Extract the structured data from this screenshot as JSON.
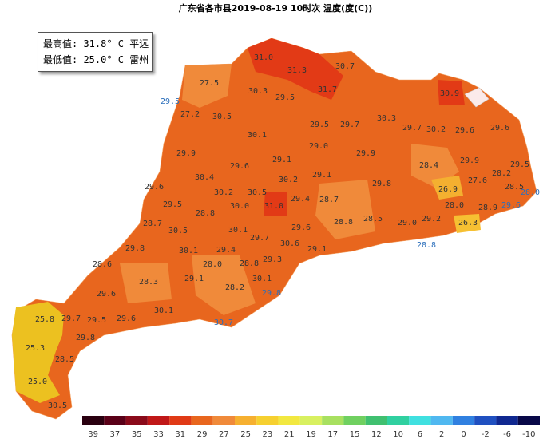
{
  "header": {
    "title": "广东省各市县2019-08-19 10时次 温度(度(C))"
  },
  "info": {
    "max": "最高值: 31.8° C 平远",
    "min": "最低值: 25.0° C 雷州"
  },
  "labels": [
    {
      "text": "31.0",
      "color": "#333"
    },
    {
      "text": "31.3",
      "color": "#333"
    },
    {
      "text": "30.7",
      "color": "#333"
    },
    {
      "text": "27.5",
      "color": "#333"
    },
    {
      "text": "29.5",
      "color": "#2a6ebb"
    },
    {
      "text": "30.3",
      "color": "#333"
    },
    {
      "text": "29.5",
      "color": "#333"
    },
    {
      "text": "31.7",
      "color": "#333"
    },
    {
      "text": "30.9",
      "color": "#333"
    },
    {
      "text": "27.2",
      "color": "#333"
    },
    {
      "text": "30.5",
      "color": "#333"
    },
    {
      "text": "30.3",
      "color": "#333"
    },
    {
      "text": "29.5",
      "color": "#333"
    },
    {
      "text": "29.7",
      "color": "#333"
    },
    {
      "text": "29.7",
      "color": "#333"
    },
    {
      "text": "30.2",
      "color": "#333"
    },
    {
      "text": "29.6",
      "color": "#333"
    },
    {
      "text": "29.6",
      "color": "#333"
    },
    {
      "text": "30.1",
      "color": "#333"
    },
    {
      "text": "29.0",
      "color": "#333"
    },
    {
      "text": "29.9",
      "color": "#333"
    },
    {
      "text": "29.1",
      "color": "#333"
    },
    {
      "text": "29.6",
      "color": "#333"
    },
    {
      "text": "29.9",
      "color": "#333"
    },
    {
      "text": "29.9",
      "color": "#333"
    },
    {
      "text": "28.4",
      "color": "#333"
    },
    {
      "text": "29.5",
      "color": "#333"
    },
    {
      "text": "28.2",
      "color": "#333"
    },
    {
      "text": "30.4",
      "color": "#333"
    },
    {
      "text": "30.2",
      "color": "#333"
    },
    {
      "text": "29.1",
      "color": "#333"
    },
    {
      "text": "29.8",
      "color": "#333"
    },
    {
      "text": "27.6",
      "color": "#333"
    },
    {
      "text": "26.9",
      "color": "#333"
    },
    {
      "text": "29.6",
      "color": "#333"
    },
    {
      "text": "28.5",
      "color": "#333"
    },
    {
      "text": "28.0",
      "color": "#2a6ebb"
    },
    {
      "text": "30.2",
      "color": "#333"
    },
    {
      "text": "30.5",
      "color": "#333"
    },
    {
      "text": "29.4",
      "color": "#333"
    },
    {
      "text": "28.7",
      "color": "#333"
    },
    {
      "text": "28.0",
      "color": "#333"
    },
    {
      "text": "28.9",
      "color": "#333"
    },
    {
      "text": "29.6",
      "color": "#2a6ebb"
    },
    {
      "text": "29.5",
      "color": "#333"
    },
    {
      "text": "30.0",
      "color": "#333"
    },
    {
      "text": "31.0",
      "color": "#333"
    },
    {
      "text": "28.8",
      "color": "#333"
    },
    {
      "text": "28.5",
      "color": "#333"
    },
    {
      "text": "29.0",
      "color": "#333"
    },
    {
      "text": "29.2",
      "color": "#333"
    },
    {
      "text": "26.3",
      "color": "#333"
    },
    {
      "text": "28.7",
      "color": "#333"
    },
    {
      "text": "28.8",
      "color": "#333"
    },
    {
      "text": "30.5",
      "color": "#333"
    },
    {
      "text": "30.1",
      "color": "#333"
    },
    {
      "text": "29.7",
      "color": "#333"
    },
    {
      "text": "29.6",
      "color": "#333"
    },
    {
      "text": "28.8",
      "color": "#2a6ebb"
    },
    {
      "text": "30.6",
      "color": "#333"
    },
    {
      "text": "29.1",
      "color": "#333"
    },
    {
      "text": "29.8",
      "color": "#333"
    },
    {
      "text": "30.1",
      "color": "#333"
    },
    {
      "text": "29.4",
      "color": "#333"
    },
    {
      "text": "28.8",
      "color": "#333"
    },
    {
      "text": "29.3",
      "color": "#333"
    },
    {
      "text": "28.0",
      "color": "#333"
    },
    {
      "text": "28.6",
      "color": "#333"
    },
    {
      "text": "29.1",
      "color": "#333"
    },
    {
      "text": "28.3",
      "color": "#333"
    },
    {
      "text": "30.1",
      "color": "#333"
    },
    {
      "text": "28.2",
      "color": "#333"
    },
    {
      "text": "29.8",
      "color": "#2a6ebb"
    },
    {
      "text": "29.6",
      "color": "#333"
    },
    {
      "text": "29.7",
      "color": "#333"
    },
    {
      "text": "29.5",
      "color": "#333"
    },
    {
      "text": "29.6",
      "color": "#333"
    },
    {
      "text": "30.1",
      "color": "#333"
    },
    {
      "text": "30.7",
      "color": "#2a6ebb"
    },
    {
      "text": "25.8",
      "color": "#333"
    },
    {
      "text": "29.8",
      "color": "#333"
    },
    {
      "text": "25.3",
      "color": "#333"
    },
    {
      "text": "28.5",
      "color": "#333"
    },
    {
      "text": "25.0",
      "color": "#333"
    },
    {
      "text": "30.5",
      "color": "#333"
    }
  ],
  "scale": [
    {
      "label": "39",
      "color": "#2a0010"
    },
    {
      "label": "37",
      "color": "#5a0018"
    },
    {
      "label": "35",
      "color": "#8a0a1a"
    },
    {
      "label": "33",
      "color": "#c01818"
    },
    {
      "label": "31",
      "color": "#e03a16"
    },
    {
      "label": "29",
      "color": "#e8661e"
    },
    {
      "label": "27",
      "color": "#f08a3a"
    },
    {
      "label": "25",
      "color": "#f6b030"
    },
    {
      "label": "23",
      "color": "#f6d030"
    },
    {
      "label": "21",
      "color": "#f2e840"
    },
    {
      "label": "19",
      "color": "#d8f060"
    },
    {
      "label": "17",
      "color": "#a8e060"
    },
    {
      "label": "15",
      "color": "#70d060"
    },
    {
      "label": "12",
      "color": "#40c070"
    },
    {
      "label": "10",
      "color": "#30d0a0"
    },
    {
      "label": "6",
      "color": "#40e0e0"
    },
    {
      "label": "2",
      "color": "#50b8f0"
    },
    {
      "label": "0",
      "color": "#3080e0"
    },
    {
      "label": "-2",
      "color": "#2050c0"
    },
    {
      "label": "-6",
      "color": "#102890"
    },
    {
      "label": "-10",
      "color": "#080848"
    }
  ]
}
